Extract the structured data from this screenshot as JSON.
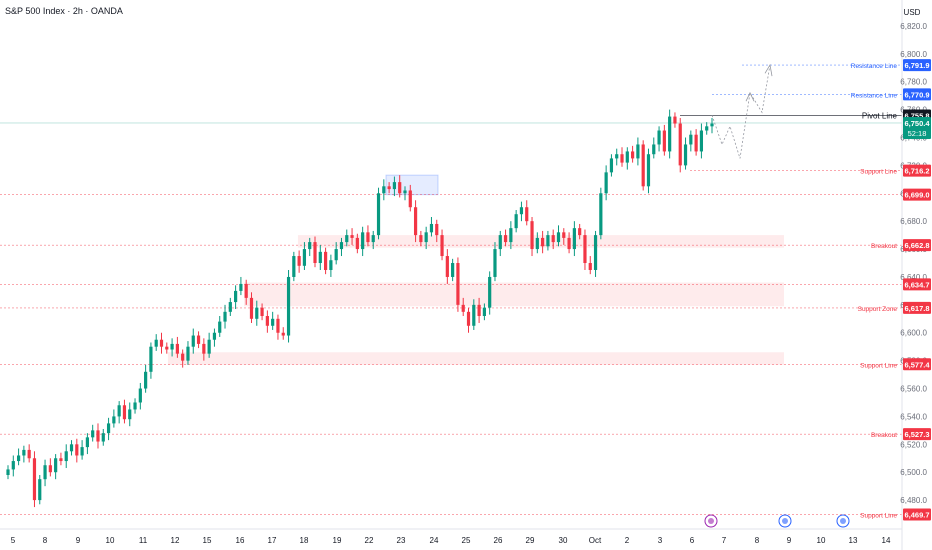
{
  "header": {
    "title": "S&P 500 Index · 2h · OANDA",
    "currency": "USD"
  },
  "colors": {
    "up": "#089981",
    "down": "#f23645",
    "support": "#f23645",
    "resistance": "#2962ff",
    "pivot": "#131722",
    "zone": "#fde4e6",
    "last": "#089981"
  },
  "chart_data": {
    "type": "candlestick",
    "ylim": [
      6460,
      6835
    ],
    "y_ticks": [
      6480,
      6500,
      6520,
      6540,
      6560,
      6580,
      6600,
      6620,
      6640,
      6660,
      6680,
      6700,
      6720,
      6740,
      6760,
      6780,
      6800,
      6820
    ],
    "x_ticks": [
      "5",
      "8",
      "9",
      "10",
      "11",
      "12",
      "15",
      "16",
      "17",
      "18",
      "19",
      "22",
      "23",
      "24",
      "25",
      "26",
      "29",
      "30",
      "Oct",
      "2",
      "3",
      "6",
      "7",
      "8",
      "9",
      "10",
      "13",
      "14"
    ],
    "closes": [
      6502,
      6508,
      6512,
      6516,
      6510,
      6480,
      6495,
      6505,
      6500,
      6510,
      6508,
      6515,
      6520,
      6512,
      6518,
      6525,
      6530,
      6522,
      6528,
      6535,
      6540,
      6548,
      6538,
      6545,
      6550,
      6560,
      6572,
      6590,
      6595,
      6590,
      6588,
      6592,
      6585,
      6580,
      6590,
      6598,
      6592,
      6585,
      6595,
      6600,
      6608,
      6615,
      6622,
      6630,
      6635,
      6625,
      6610,
      6618,
      6612,
      6605,
      6610,
      6600,
      6598,
      6640,
      6655,
      6648,
      6660,
      6665,
      6650,
      6658,
      6645,
      6652,
      6660,
      6665,
      6670,
      6668,
      6660,
      6672,
      6665,
      6670,
      6700,
      6705,
      6703,
      6708,
      6700,
      6702,
      6690,
      6670,
      6665,
      6672,
      6678,
      6670,
      6655,
      6640,
      6650,
      6620,
      6615,
      6605,
      6620,
      6612,
      6618,
      6640,
      6660,
      6670,
      6665,
      6675,
      6685,
      6690,
      6680,
      6660,
      6668,
      6662,
      6670,
      6665,
      6672,
      6668,
      6660,
      6675,
      6670,
      6650,
      6645,
      6670,
      6700,
      6715,
      6725,
      6728,
      6722,
      6730,
      6725,
      6735,
      6705,
      6728,
      6735,
      6745,
      6730,
      6755,
      6750,
      6720,
      6735,
      6742,
      6730,
      6745,
      6748,
      6750
    ],
    "levels": [
      {
        "label": "Resistance Line",
        "value": 6791.9,
        "kind": "resistance"
      },
      {
        "label": "Resistance Line",
        "value": 6770.9,
        "kind": "resistance"
      },
      {
        "label": "Pivot Line",
        "value": 6755.8,
        "kind": "pivot"
      },
      {
        "label": "Support Line",
        "value": 6716.2,
        "kind": "support"
      },
      {
        "label": "",
        "value": 6699.0,
        "kind": "support"
      },
      {
        "label": "Breakout",
        "value": 6662.8,
        "kind": "support"
      },
      {
        "label": "",
        "value": 6634.7,
        "kind": "support"
      },
      {
        "label": "Support Zone",
        "value": 6617.8,
        "kind": "support"
      },
      {
        "label": "Support Line",
        "value": 6577.4,
        "kind": "support"
      },
      {
        "label": "Breakout",
        "value": 6527.3,
        "kind": "support"
      },
      {
        "label": "Support Line",
        "value": 6469.7,
        "kind": "support"
      }
    ],
    "zones": [
      {
        "from": 6661,
        "to": 6670,
        "x_start": 0.3197,
        "x_end": 0.8412
      },
      {
        "from": 6619,
        "to": 6636,
        "x_start": 0.2618,
        "x_end": 0.8412
      },
      {
        "from": 6577,
        "to": 6586,
        "x_start": 0.1802,
        "x_end": 0.8412
      }
    ],
    "last_price": {
      "value": 6750.4,
      "countdown": "52:18"
    }
  }
}
